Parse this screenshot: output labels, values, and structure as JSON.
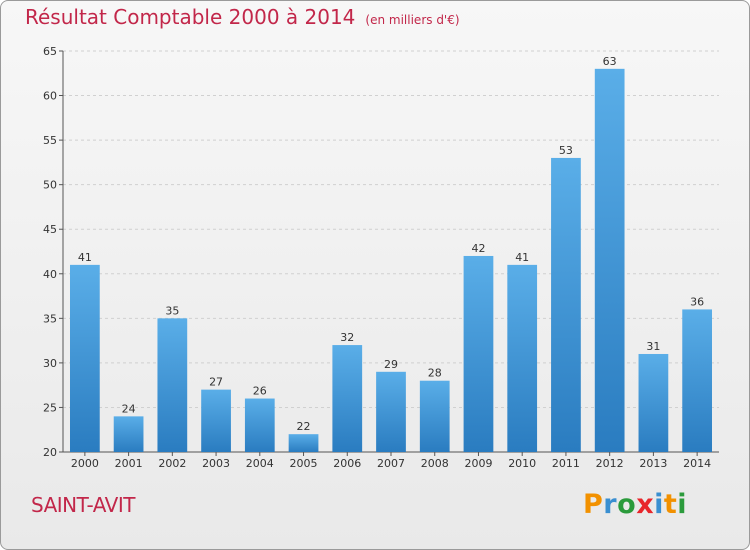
{
  "header": {
    "title": "Résultat Comptable 2000 à 2014",
    "subtitle": "(en milliers d'€)"
  },
  "footer": {
    "commune": "SAINT-AVIT",
    "logo": "Proxiti",
    "logo_colors": [
      "#f29100",
      "#3a8fd1",
      "#2b9b3c",
      "#e8262b",
      "#3a8fd1",
      "#f29100",
      "#2b9b3c"
    ]
  },
  "chart_data": {
    "type": "bar",
    "categories": [
      "2000",
      "2001",
      "2002",
      "2003",
      "2004",
      "2005",
      "2006",
      "2007",
      "2008",
      "2009",
      "2010",
      "2011",
      "2012",
      "2013",
      "2014"
    ],
    "values": [
      41,
      24,
      35,
      27,
      26,
      22,
      32,
      29,
      28,
      42,
      41,
      53,
      63,
      31,
      36
    ],
    "title": "Résultat Comptable 2000 à 2014",
    "xlabel": "",
    "ylabel": "",
    "ylim": [
      20,
      65
    ],
    "yticks": [
      20,
      25,
      30,
      35,
      40,
      45,
      50,
      55,
      60,
      65
    ],
    "grid": true,
    "bar_color": "#3d94d6",
    "grid_color": "#d0d0d0"
  }
}
